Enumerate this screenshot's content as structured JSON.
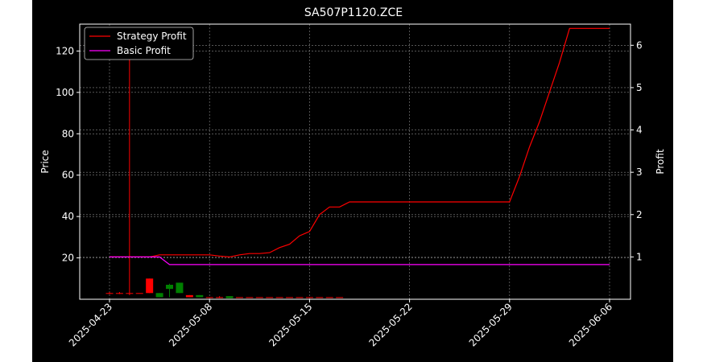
{
  "chart_data": {
    "type": "line",
    "title": "SA507P1120.ZCE",
    "ylabel": "Price",
    "y2label": "Profit",
    "ylim": [
      0,
      133
    ],
    "y2lim": [
      0,
      6.5
    ],
    "yticks": [
      20,
      40,
      60,
      80,
      100,
      120
    ],
    "y2ticks": [
      1,
      2,
      3,
      4,
      5,
      6
    ],
    "xticks": [
      {
        "label": "2025-04-23",
        "day": 0
      },
      {
        "label": "2025-05-08",
        "day": 10
      },
      {
        "label": "2025-05-15",
        "day": 20
      },
      {
        "label": "2025-05-22",
        "day": 30
      },
      {
        "label": "2025-05-29",
        "day": 40
      },
      {
        "label": "2025-06-06",
        "day": 50
      }
    ],
    "grid": true,
    "legend_position": "top-left",
    "colors": {
      "background": "#000000",
      "strategy": "#ff0000",
      "basic": "#ff00ff",
      "up_candle": "#ff0000",
      "down_candle": "#008000",
      "grid": "#888888"
    },
    "series": [
      {
        "name": "Strategy Profit",
        "axis": "right",
        "color": "#ff0000",
        "x": [
          0,
          1,
          2,
          3,
          4,
          5,
          6,
          7,
          8,
          9,
          10,
          11,
          12,
          13,
          14,
          15,
          16,
          17,
          18,
          19,
          20,
          21,
          22,
          23,
          24,
          25,
          26,
          27,
          28,
          29,
          30,
          31,
          32,
          33,
          34,
          35,
          36,
          37,
          38,
          39,
          40,
          41,
          42,
          43,
          44,
          45,
          46,
          47,
          48,
          49,
          50
        ],
        "values": [
          1,
          1,
          1,
          1,
          1,
          1.05,
          1.05,
          1.05,
          1.05,
          1.05,
          1.05,
          1.02,
          1,
          1.05,
          1.08,
          1.08,
          1.1,
          1.22,
          1.3,
          1.5,
          1.6,
          2.0,
          2.18,
          2.18,
          2.3,
          2.3,
          2.3,
          2.3,
          2.3,
          2.3,
          2.3,
          2.3,
          2.3,
          2.3,
          2.3,
          2.3,
          2.3,
          2.3,
          2.3,
          2.3,
          2.3,
          2.9,
          3.6,
          4.2,
          4.9,
          5.6,
          6.4,
          6.4,
          6.4,
          6.4,
          6.4
        ]
      },
      {
        "name": "Basic Profit",
        "axis": "right",
        "color": "#ff00ff",
        "x": [
          0,
          1,
          2,
          3,
          4,
          5,
          6,
          7,
          8,
          9,
          10,
          11,
          12,
          13,
          14,
          15,
          16,
          17,
          18,
          19,
          20,
          21,
          22,
          23,
          24,
          25,
          26,
          27,
          28,
          29,
          30,
          31,
          32,
          33,
          34,
          35,
          36,
          37,
          38,
          39,
          40,
          41,
          42,
          43,
          44,
          45,
          46,
          47,
          48,
          49,
          50
        ],
        "values": [
          1,
          1,
          1,
          1,
          1,
          1,
          0.82,
          0.82,
          0.82,
          0.82,
          0.82,
          0.82,
          0.82,
          0.82,
          0.82,
          0.82,
          0.82,
          0.82,
          0.82,
          0.82,
          0.82,
          0.82,
          0.82,
          0.82,
          0.82,
          0.82,
          0.82,
          0.82,
          0.82,
          0.82,
          0.82,
          0.82,
          0.82,
          0.82,
          0.82,
          0.82,
          0.82,
          0.82,
          0.82,
          0.82,
          0.82,
          0.82,
          0.82,
          0.82,
          0.82,
          0.82,
          0.82,
          0.82,
          0.82,
          0.82,
          0.82
        ]
      }
    ],
    "candles": [
      {
        "day": 0,
        "open": 3,
        "close": 3,
        "high": 3.5,
        "low": 2.5
      },
      {
        "day": 1,
        "open": 3,
        "close": 3,
        "high": 3.5,
        "low": 2.5
      },
      {
        "day": 2,
        "open": 3,
        "close": 3,
        "high": 128,
        "low": 2
      },
      {
        "day": 3,
        "open": 3,
        "close": 3,
        "high": 3,
        "low": 3
      },
      {
        "day": 4,
        "open": 3,
        "close": 10,
        "high": 10,
        "low": 3
      },
      {
        "day": 5,
        "open": 3,
        "close": 1,
        "high": 3,
        "low": 1
      },
      {
        "day": 6,
        "open": 7,
        "close": 5,
        "high": 7.5,
        "low": 1
      },
      {
        "day": 7,
        "open": 8,
        "close": 3,
        "high": 8,
        "low": 3
      },
      {
        "day": 8,
        "open": 1,
        "close": 2,
        "high": 2,
        "low": 1
      },
      {
        "day": 9,
        "open": 2,
        "close": 1,
        "high": 2,
        "low": 1
      },
      {
        "day": 10,
        "open": 1,
        "close": 1,
        "high": 1,
        "low": 1
      },
      {
        "day": 11,
        "open": 1,
        "close": 1,
        "high": 1.5,
        "low": 0.5
      },
      {
        "day": 12,
        "open": 1.5,
        "close": 0.5,
        "high": 1.5,
        "low": 0.5
      },
      {
        "day": 13,
        "open": 1,
        "close": 1,
        "high": 1,
        "low": 1
      },
      {
        "day": 14,
        "open": 1,
        "close": 1,
        "high": 1,
        "low": 1
      },
      {
        "day": 15,
        "open": 1,
        "close": 1,
        "high": 1,
        "low": 1
      },
      {
        "day": 16,
        "open": 1,
        "close": 1,
        "high": 1,
        "low": 1
      },
      {
        "day": 17,
        "open": 1,
        "close": 1,
        "high": 1,
        "low": 1
      },
      {
        "day": 18,
        "open": 1,
        "close": 1,
        "high": 1,
        "low": 1
      },
      {
        "day": 19,
        "open": 1,
        "close": 1,
        "high": 1,
        "low": 1
      },
      {
        "day": 20,
        "open": 1,
        "close": 1,
        "high": 1,
        "low": 1
      },
      {
        "day": 21,
        "open": 1,
        "close": 1,
        "high": 1,
        "low": 1
      },
      {
        "day": 22,
        "open": 1,
        "close": 1,
        "high": 1,
        "low": 1
      },
      {
        "day": 23,
        "open": 1,
        "close": 1,
        "high": 1,
        "low": 1
      }
    ]
  }
}
